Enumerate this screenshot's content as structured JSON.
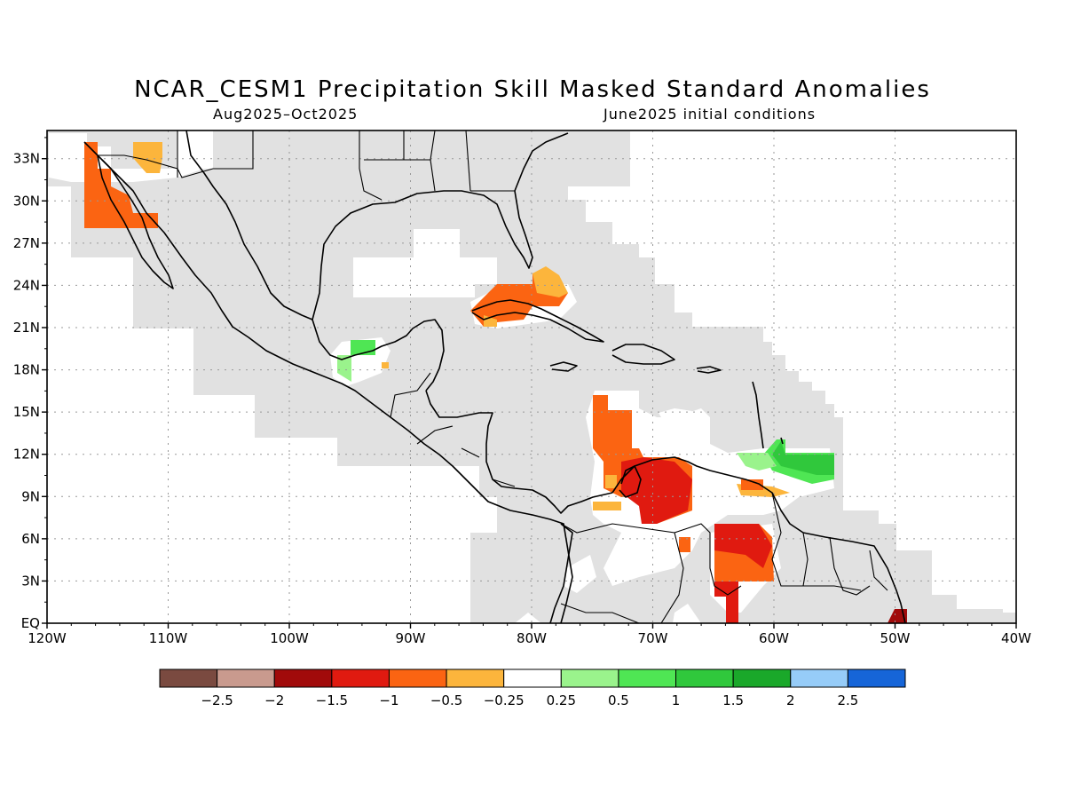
{
  "header": {
    "title": "NCAR_CESM1 Precipitation Skill Masked Standard Anomalies",
    "period": "Aug2025–Oct2025",
    "init": "June2025 initial conditions"
  },
  "axes": {
    "lon_labels": [
      "120W",
      "110W",
      "100W",
      "90W",
      "80W",
      "70W",
      "60W",
      "50W",
      "40W"
    ],
    "lat_labels": [
      "33N",
      "30N",
      "27N",
      "24N",
      "21N",
      "18N",
      "15N",
      "12N",
      "9N",
      "6N",
      "3N",
      "EQ"
    ]
  },
  "colorbar": {
    "labels": [
      "−2.5",
      "−2",
      "−1.5",
      "−1",
      "−0.5",
      "−0.25",
      "0.25",
      "0.5",
      "1",
      "1.5",
      "2",
      "2.5"
    ],
    "colors": [
      "#7a4a40",
      "#c99a8e",
      "#a10a0a",
      "#e01a10",
      "#fb6412",
      "#fcb53c",
      "#ffffff",
      "#9af38c",
      "#4fe654",
      "#30c83c",
      "#1aa82a",
      "#96ccf8",
      "#1665d8"
    ]
  },
  "map": {
    "no_skill_mask_color": "#e1e1e1",
    "extent": {
      "lon_min": -120,
      "lon_max": -40,
      "lat_min": 0,
      "lat_max": 35
    },
    "grid": "dotted"
  }
}
